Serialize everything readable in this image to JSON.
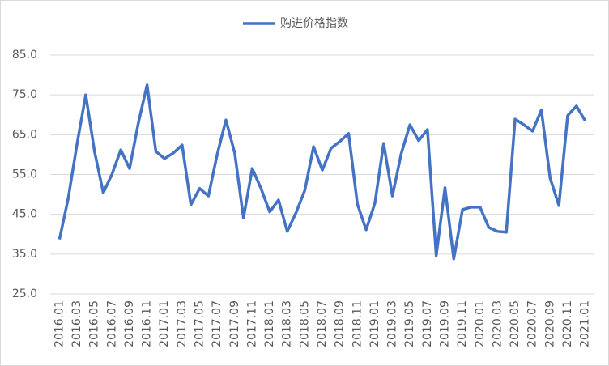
{
  "chart_data": {
    "type": "line",
    "categories": [
      "2016.01",
      null,
      "2016.03",
      null,
      "2016.05",
      null,
      "2016.07",
      null,
      "2016.09",
      null,
      "2016.11",
      null,
      "2017.01",
      null,
      "2017.03",
      null,
      "2017.05",
      null,
      "2017.07",
      null,
      "2017.09",
      null,
      "2017.11",
      null,
      "2018.01",
      null,
      "2018.03",
      null,
      "2018.05",
      null,
      "2018.07",
      null,
      "2018.09",
      null,
      "2018.11",
      null,
      "2019.01",
      null,
      "2019.03",
      null,
      "2019.05",
      null,
      "2019.07",
      null,
      "2019.09",
      null,
      "2019.11",
      null,
      "2020.01",
      null,
      "2020.03",
      null,
      "2020.05",
      null,
      "2020.07",
      null,
      "2020.09",
      null,
      "2020.11",
      null,
      "2021.01"
    ],
    "series": [
      {
        "name": "购进价格指数",
        "color": "#4472c4",
        "values": [
          38.7,
          49,
          62.6,
          75,
          60.8,
          50.4,
          55.1,
          61.2,
          56.5,
          67.9,
          77.5,
          60.8,
          59,
          60.4,
          62.4,
          47.4,
          51.5,
          49.6,
          60,
          68.7,
          60.4,
          44.1,
          56.5,
          51.5,
          45.6,
          48.6,
          40.7,
          45.4,
          51,
          62,
          56.1,
          61.6,
          63.3,
          65.3,
          47.6,
          41.1,
          47.8,
          62.8,
          49.6,
          60.2,
          67.5,
          63.5,
          66.3,
          34.6,
          51.7,
          33.8,
          46.2,
          46.8,
          46.8,
          41.7,
          40.7,
          40.5,
          68.9,
          67.5,
          65.9,
          71.2,
          54.1,
          47.2,
          69.8,
          72.2,
          68.5
        ]
      }
    ],
    "ylim": [
      25,
      85
    ],
    "yticks": [
      {
        "value": 25,
        "label": "25.0"
      },
      {
        "value": 35,
        "label": "35.0"
      },
      {
        "value": 45,
        "label": "45.0"
      },
      {
        "value": 55,
        "label": "55.0"
      },
      {
        "value": 65,
        "label": "65.0"
      },
      {
        "value": 75,
        "label": "75.0"
      },
      {
        "value": 85,
        "label": "85.0"
      }
    ],
    "grid": true,
    "legend": "top"
  }
}
